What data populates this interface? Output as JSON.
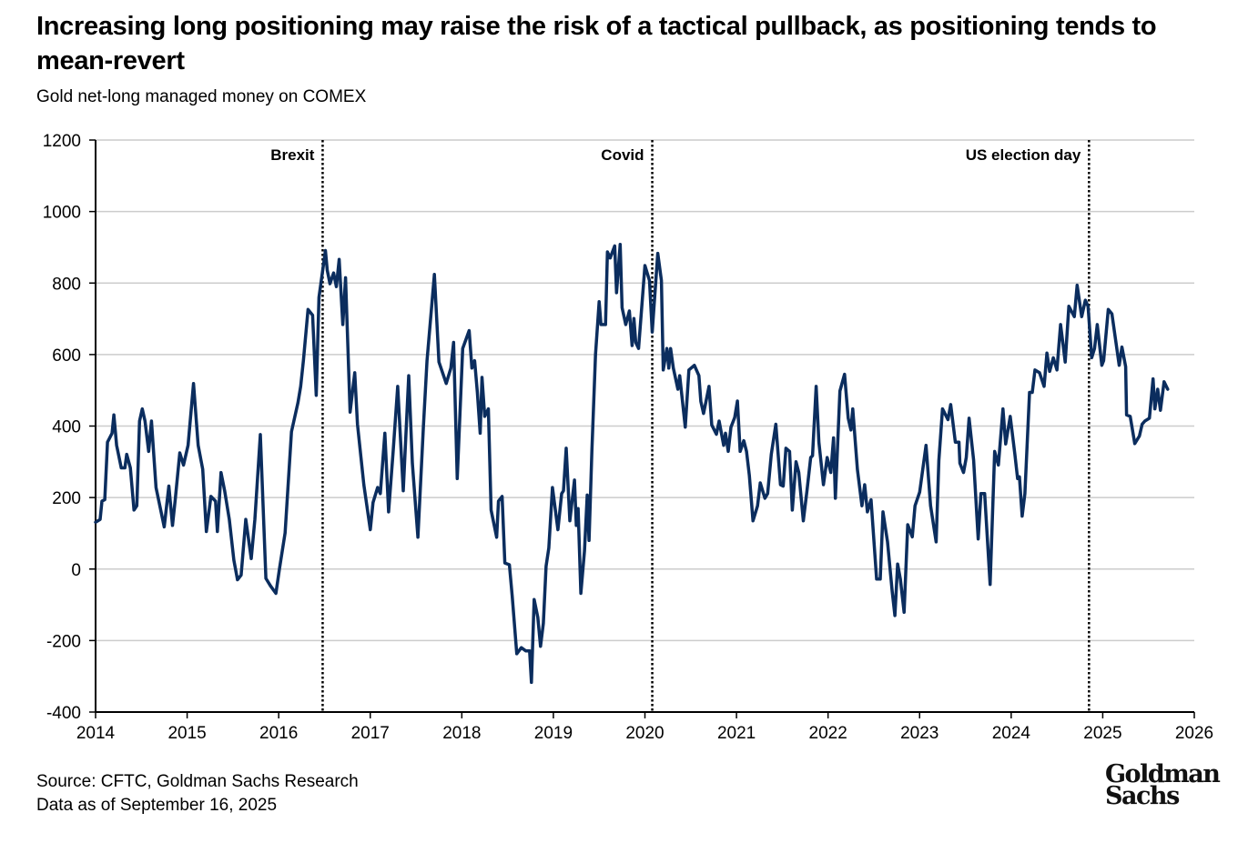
{
  "title": "Increasing long positioning may raise the risk of a tactical pullback, as positioning tends to mean-revert",
  "subtitle": "Gold net-long managed money on COMEX",
  "source": {
    "line1": "Source: CFTC, Goldman Sachs Research",
    "line2": "Data as of September 16, 2025"
  },
  "logo": {
    "line1": "Goldman",
    "line2": "Sachs"
  },
  "colors": {
    "line": "#0b2d5e",
    "grid": "#cccccc",
    "event_line": "#000000"
  },
  "chart_data": {
    "type": "line",
    "title": "",
    "xlabel": "",
    "ylabel": "",
    "xlim": [
      2014,
      2026
    ],
    "ylim": [
      -400,
      1200
    ],
    "grid": "horizontal",
    "x_ticks": [
      "2014",
      "2015",
      "2016",
      "2017",
      "2018",
      "2019",
      "2020",
      "2021",
      "2022",
      "2023",
      "2024",
      "2025",
      "2026"
    ],
    "y_ticks": [
      "-400",
      "-200",
      "0",
      "200",
      "400",
      "600",
      "800",
      "1000",
      "1200"
    ],
    "events": [
      {
        "label": "Brexit",
        "x": 2016.48
      },
      {
        "label": "Covid",
        "x": 2020.08
      },
      {
        "label": "US election day",
        "x": 2024.85
      }
    ],
    "series": [
      {
        "x": [
          2014.0,
          2014.05,
          2014.07,
          2014.1,
          2014.13,
          2014.18,
          2014.2,
          2014.23,
          2014.28,
          2014.32,
          2014.34,
          2014.38,
          2014.42,
          2014.45,
          2014.48,
          2014.51,
          2014.54,
          2014.58,
          2014.61,
          2014.66,
          2014.75,
          2014.8,
          2014.84,
          2014.87,
          2014.92,
          2014.96,
          2015.01,
          2015.07,
          2015.12,
          2015.17,
          2015.21,
          2015.26,
          2015.31,
          2015.33,
          2015.37,
          2015.41,
          2015.46,
          2015.51,
          2015.55,
          2015.59,
          2015.64,
          2015.7,
          2015.74,
          2015.8,
          2015.86,
          2015.91,
          2015.97,
          2016.01,
          2016.07,
          2016.14,
          2016.21,
          2016.24,
          2016.27,
          2016.32,
          2016.37,
          2016.41,
          2016.44,
          2016.51,
          2016.53,
          2016.56,
          2016.6,
          2016.63,
          2016.66,
          2016.7,
          2016.73,
          2016.78,
          2016.83,
          2016.86,
          2016.93,
          2017.0,
          2017.03,
          2017.08,
          2017.11,
          2017.16,
          2017.2,
          2017.25,
          2017.3,
          2017.36,
          2017.42,
          2017.46,
          2017.52,
          2017.58,
          2017.62,
          2017.7,
          2017.75,
          2017.83,
          2017.88,
          2017.91,
          2017.95,
          2018.01,
          2018.08,
          2018.11,
          2018.14,
          2018.17,
          2018.2,
          2018.22,
          2018.25,
          2018.29,
          2018.32,
          2018.38,
          2018.4,
          2018.44,
          2018.47,
          2018.52,
          2018.55,
          2018.6,
          2018.65,
          2018.7,
          2018.74,
          2018.76,
          2018.79,
          2018.83,
          2018.86,
          2018.89,
          2018.92,
          2018.95,
          2018.99,
          2019.05,
          2019.09,
          2019.11,
          2019.14,
          2019.18,
          2019.23,
          2019.25,
          2019.27,
          2019.3,
          2019.34,
          2019.37,
          2019.39,
          2019.42,
          2019.46,
          2019.5,
          2019.52,
          2019.57,
          2019.59,
          2019.62,
          2019.67,
          2019.69,
          2019.73,
          2019.75,
          2019.79,
          2019.83,
          2019.86,
          2019.88,
          2019.9,
          2019.93,
          2020.0,
          2020.05,
          2020.08,
          2020.14,
          2020.18,
          2020.2,
          2020.24,
          2020.26,
          2020.28,
          2020.31,
          2020.36,
          2020.38,
          2020.44,
          2020.48,
          2020.54,
          2020.59,
          2020.61,
          2020.64,
          2020.7,
          2020.73,
          2020.78,
          2020.81,
          2020.86,
          2020.88,
          2020.91,
          2020.94,
          2020.98,
          2021.01,
          2021.04,
          2021.08,
          2021.11,
          2021.14,
          2021.18,
          2021.23,
          2021.26,
          2021.31,
          2021.34,
          2021.38,
          2021.43,
          2021.48,
          2021.51,
          2021.54,
          2021.58,
          2021.61,
          2021.65,
          2021.68,
          2021.73,
          2021.77,
          2021.81,
          2021.83,
          2021.87,
          2021.9,
          2021.95,
          2021.99,
          2022.03,
          2022.06,
          2022.08,
          2022.13,
          2022.18,
          2022.22,
          2022.25,
          2022.27,
          2022.32,
          2022.37,
          2022.4,
          2022.43,
          2022.47,
          2022.53,
          2022.57,
          2022.6,
          2022.65,
          2022.7,
          2022.73,
          2022.76,
          2022.79,
          2022.83,
          2022.87,
          2022.92,
          2022.95,
          2023.0,
          2023.07,
          2023.12,
          2023.18,
          2023.21,
          2023.25,
          2023.31,
          2023.34,
          2023.39,
          2023.43,
          2023.44,
          2023.48,
          2023.51,
          2023.54,
          2023.59,
          2023.64,
          2023.67,
          2023.71,
          2023.77,
          2023.82,
          2023.86,
          2023.91,
          2023.94,
          2023.99,
          2024.04,
          2024.07,
          2024.09,
          2024.12,
          2024.15,
          2024.2,
          2024.23,
          2024.26,
          2024.31,
          2024.36,
          2024.39,
          2024.42,
          2024.46,
          2024.5,
          2024.54,
          2024.59,
          2024.63,
          2024.69,
          2024.72,
          2024.77,
          2024.81,
          2024.84,
          2024.88,
          2024.91,
          2024.94,
          2024.99,
          2025.01,
          2025.06,
          2025.1,
          2025.18,
          2025.21,
          2025.25,
          2025.26,
          2025.3,
          2025.35,
          2025.4,
          2025.43,
          2025.46,
          2025.51,
          2025.55,
          2025.57,
          2025.6,
          2025.63,
          2025.67,
          2025.71
        ],
        "y": [
          131,
          139,
          190,
          194,
          355,
          380,
          431,
          346,
          283,
          283,
          321,
          283,
          165,
          177,
          414,
          448,
          414,
          329,
          414,
          228,
          118,
          232,
          122,
          194,
          325,
          291,
          346,
          519,
          346,
          279,
          105,
          203,
          190,
          105,
          270,
          219,
          139,
          25,
          -30,
          -17,
          139,
          29,
          139,
          376,
          -26,
          -47,
          -68,
          4,
          101,
          384,
          465,
          511,
          583,
          726,
          710,
          486,
          760,
          891,
          836,
          798,
          828,
          790,
          866,
          684,
          815,
          439,
          549,
          405,
          236,
          110,
          186,
          228,
          211,
          380,
          160,
          329,
          511,
          219,
          541,
          296,
          89,
          397,
          583,
          824,
          579,
          519,
          562,
          634,
          253,
          617,
          667,
          562,
          583,
          494,
          380,
          536,
          427,
          448,
          165,
          89,
          190,
          203,
          17,
          12,
          -76,
          -237,
          -220,
          -229,
          -229,
          -317,
          -85,
          -135,
          -216,
          -152,
          8,
          59,
          228,
          110,
          211,
          219,
          338,
          135,
          249,
          122,
          169,
          -68,
          51,
          207,
          80,
          329,
          600,
          748,
          684,
          684,
          887,
          870,
          904,
          773,
          908,
          731,
          684,
          722,
          625,
          701,
          634,
          617,
          849,
          807,
          663,
          883,
          807,
          557,
          617,
          562,
          617,
          562,
          503,
          541,
          397,
          557,
          570,
          541,
          469,
          435,
          511,
          403,
          377,
          414,
          346,
          380,
          329,
          397,
          424,
          470,
          329,
          359,
          329,
          262,
          135,
          177,
          241,
          198,
          211,
          321,
          405,
          236,
          232,
          338,
          329,
          165,
          300,
          270,
          135,
          219,
          312,
          317,
          511,
          355,
          236,
          312,
          270,
          367,
          198,
          498,
          545,
          422,
          389,
          448,
          279,
          177,
          236,
          160,
          194,
          -28,
          -28,
          160,
          76,
          -62,
          -130,
          14,
          -28,
          -121,
          124,
          90,
          177,
          215,
          346,
          177,
          76,
          304,
          448,
          418,
          460,
          355,
          355,
          296,
          270,
          312,
          422,
          304,
          84,
          211,
          211,
          -43,
          329,
          291,
          448,
          350,
          427,
          321,
          253,
          258,
          148,
          211,
          494,
          494,
          557,
          549,
          511,
          604,
          553,
          591,
          557,
          684,
          579,
          735,
          706,
          794,
          706,
          752,
          735,
          591,
          617,
          684,
          570,
          583,
          726,
          714,
          570,
          621,
          566,
          431,
          427,
          351,
          372,
          405,
          414,
          422,
          532,
          448,
          503,
          444,
          524,
          503
        ]
      }
    ]
  }
}
